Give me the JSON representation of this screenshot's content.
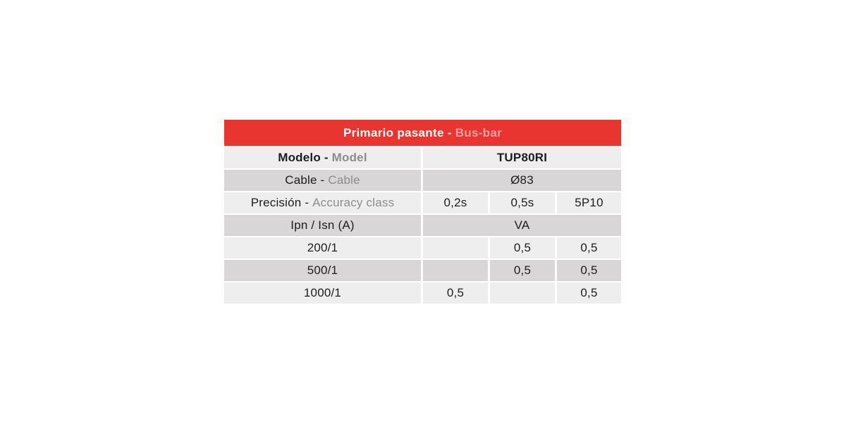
{
  "table": {
    "header": {
      "title_primary": "Primario pasante - ",
      "title_secondary": "Bus-bar"
    },
    "columns": {
      "label_column_header": "Modelo - Model",
      "value_columns": [
        "0,2s",
        "0,5s",
        "5P10"
      ]
    },
    "rows": [
      {
        "label_primary": "Modelo - ",
        "label_secondary": "Model",
        "value_span": "TUP80RI"
      },
      {
        "label_primary": "Cable - ",
        "label_secondary": "Cable",
        "value_span": "Ø83"
      },
      {
        "label_primary": "Precisión - ",
        "label_secondary": "Accuracy class",
        "values": [
          "0,2s",
          "0,5s",
          "5P10"
        ]
      },
      {
        "label_primary": "Ipn / Isn (A)",
        "value_span": "VA"
      },
      {
        "label_primary": "200/1",
        "values": [
          "",
          "0,5",
          "0,5"
        ]
      },
      {
        "label_primary": "500/1",
        "values": [
          "",
          "0,5",
          "0,5"
        ]
      },
      {
        "label_primary": "1000/1",
        "values": [
          "0,5",
          "",
          "0,5"
        ]
      }
    ],
    "colors": {
      "header_bg": "#e8352f",
      "header_text": "#ffffff",
      "header_accent": "#f2a1a1",
      "row_light": "#efeeee",
      "row_dark": "#d8d6d6",
      "text_dark": "#1d1d1b",
      "text_gray": "#8d8d8d"
    }
  }
}
